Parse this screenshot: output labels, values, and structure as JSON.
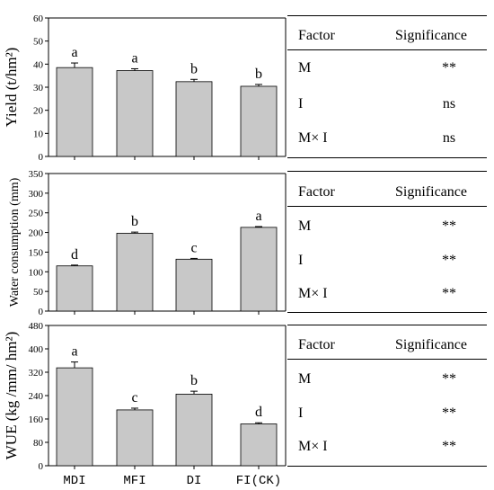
{
  "chart_data": [
    {
      "type": "bar",
      "ylabel": "Yield (t/hm²)",
      "ylim": [
        0,
        60
      ],
      "yticks": [
        0,
        10,
        20,
        30,
        40,
        50,
        60
      ],
      "categories": [
        "MDI",
        "MFI",
        "DI",
        "FI(CK)"
      ],
      "values": [
        38.5,
        37.2,
        32.4,
        30.4
      ],
      "errors": [
        2.0,
        0.8,
        1.0,
        0.8
      ],
      "letters": [
        "a",
        "a",
        "b",
        "b"
      ],
      "bar_color": "#c8c8c8",
      "table": {
        "header": [
          "Factor",
          "Significance"
        ],
        "rows": [
          [
            "M",
            "**"
          ],
          [
            "I",
            "ns"
          ],
          [
            "M× I",
            "ns"
          ]
        ]
      }
    },
    {
      "type": "bar",
      "ylabel": "Water consumption (mm)",
      "ylim": [
        0,
        350
      ],
      "yticks": [
        0,
        50,
        100,
        150,
        200,
        250,
        300,
        350
      ],
      "categories": [
        "MDI",
        "MFI",
        "DI",
        "FI(CK)"
      ],
      "values": [
        115,
        198,
        132,
        213
      ],
      "errors": [
        2,
        3,
        2,
        2
      ],
      "letters": [
        "d",
        "b",
        "c",
        "a"
      ],
      "bar_color": "#c8c8c8",
      "table": {
        "header": [
          "Factor",
          "Significance"
        ],
        "rows": [
          [
            "M",
            "**"
          ],
          [
            "I",
            "**"
          ],
          [
            "M× I",
            "**"
          ]
        ]
      }
    },
    {
      "type": "bar",
      "ylabel": "WUE (kg /mm/ hm²)",
      "ylim": [
        0,
        480
      ],
      "yticks": [
        0,
        80,
        160,
        240,
        320,
        400,
        480
      ],
      "categories": [
        "MDI",
        "MFI",
        "DI",
        "FI(CK)"
      ],
      "values": [
        335,
        191,
        245,
        143
      ],
      "errors": [
        20,
        6,
        10,
        4
      ],
      "letters": [
        "a",
        "c",
        "b",
        "d"
      ],
      "bar_color": "#c8c8c8",
      "table": {
        "header": [
          "Factor",
          "Significance"
        ],
        "rows": [
          [
            "M",
            "**"
          ],
          [
            "I",
            "**"
          ],
          [
            "M× I",
            "**"
          ]
        ]
      }
    }
  ]
}
